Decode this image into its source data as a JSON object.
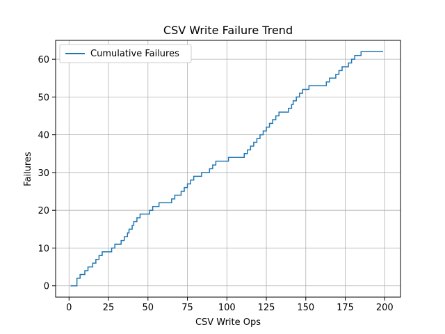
{
  "chart_data": {
    "type": "line",
    "title": "CSV Write Failure Trend",
    "xlabel": "CSV Write Ops",
    "ylabel": "Failures",
    "xlim": [
      -8.5,
      210
    ],
    "ylim": [
      -3,
      65
    ],
    "xticks": [
      0,
      25,
      50,
      75,
      100,
      125,
      150,
      175,
      200
    ],
    "yticks": [
      0,
      10,
      20,
      30,
      40,
      50,
      60
    ],
    "grid": true,
    "legend_position": "upper-left",
    "series": [
      {
        "name": "Cumulative Failures",
        "color": "#1f77b4",
        "step": "post",
        "x": [
          1,
          5,
          7,
          10,
          12,
          15,
          17,
          19,
          21,
          23,
          27,
          29,
          33,
          35,
          37,
          38,
          40,
          41,
          43,
          45,
          51,
          53,
          57,
          65,
          67,
          71,
          73,
          75,
          77,
          79,
          84,
          89,
          91,
          93,
          101,
          111,
          113,
          115,
          117,
          119,
          121,
          123,
          125,
          127,
          129,
          131,
          133,
          139,
          141,
          142,
          144,
          146,
          148,
          152,
          163,
          165,
          169,
          171,
          173,
          177,
          179,
          181,
          183,
          185,
          187,
          189,
          191,
          193,
          195,
          197,
          199
        ],
        "values": [
          0,
          2,
          3,
          4,
          5,
          6,
          7,
          8,
          9,
          9,
          10,
          11,
          12,
          13,
          14,
          15,
          16,
          17,
          18,
          19,
          20,
          21,
          22,
          23,
          24,
          25,
          26,
          27,
          28,
          29,
          30,
          31,
          32,
          33,
          34,
          35,
          36,
          37,
          38,
          39,
          40,
          41,
          42,
          43,
          44,
          45,
          46,
          47,
          48,
          49,
          50,
          51,
          52,
          53,
          54,
          55,
          56,
          57,
          58,
          59,
          60,
          61,
          61,
          62,
          62,
          62,
          62,
          62,
          62,
          62,
          62
        ],
        "line_width": 1.5
      }
    ]
  }
}
